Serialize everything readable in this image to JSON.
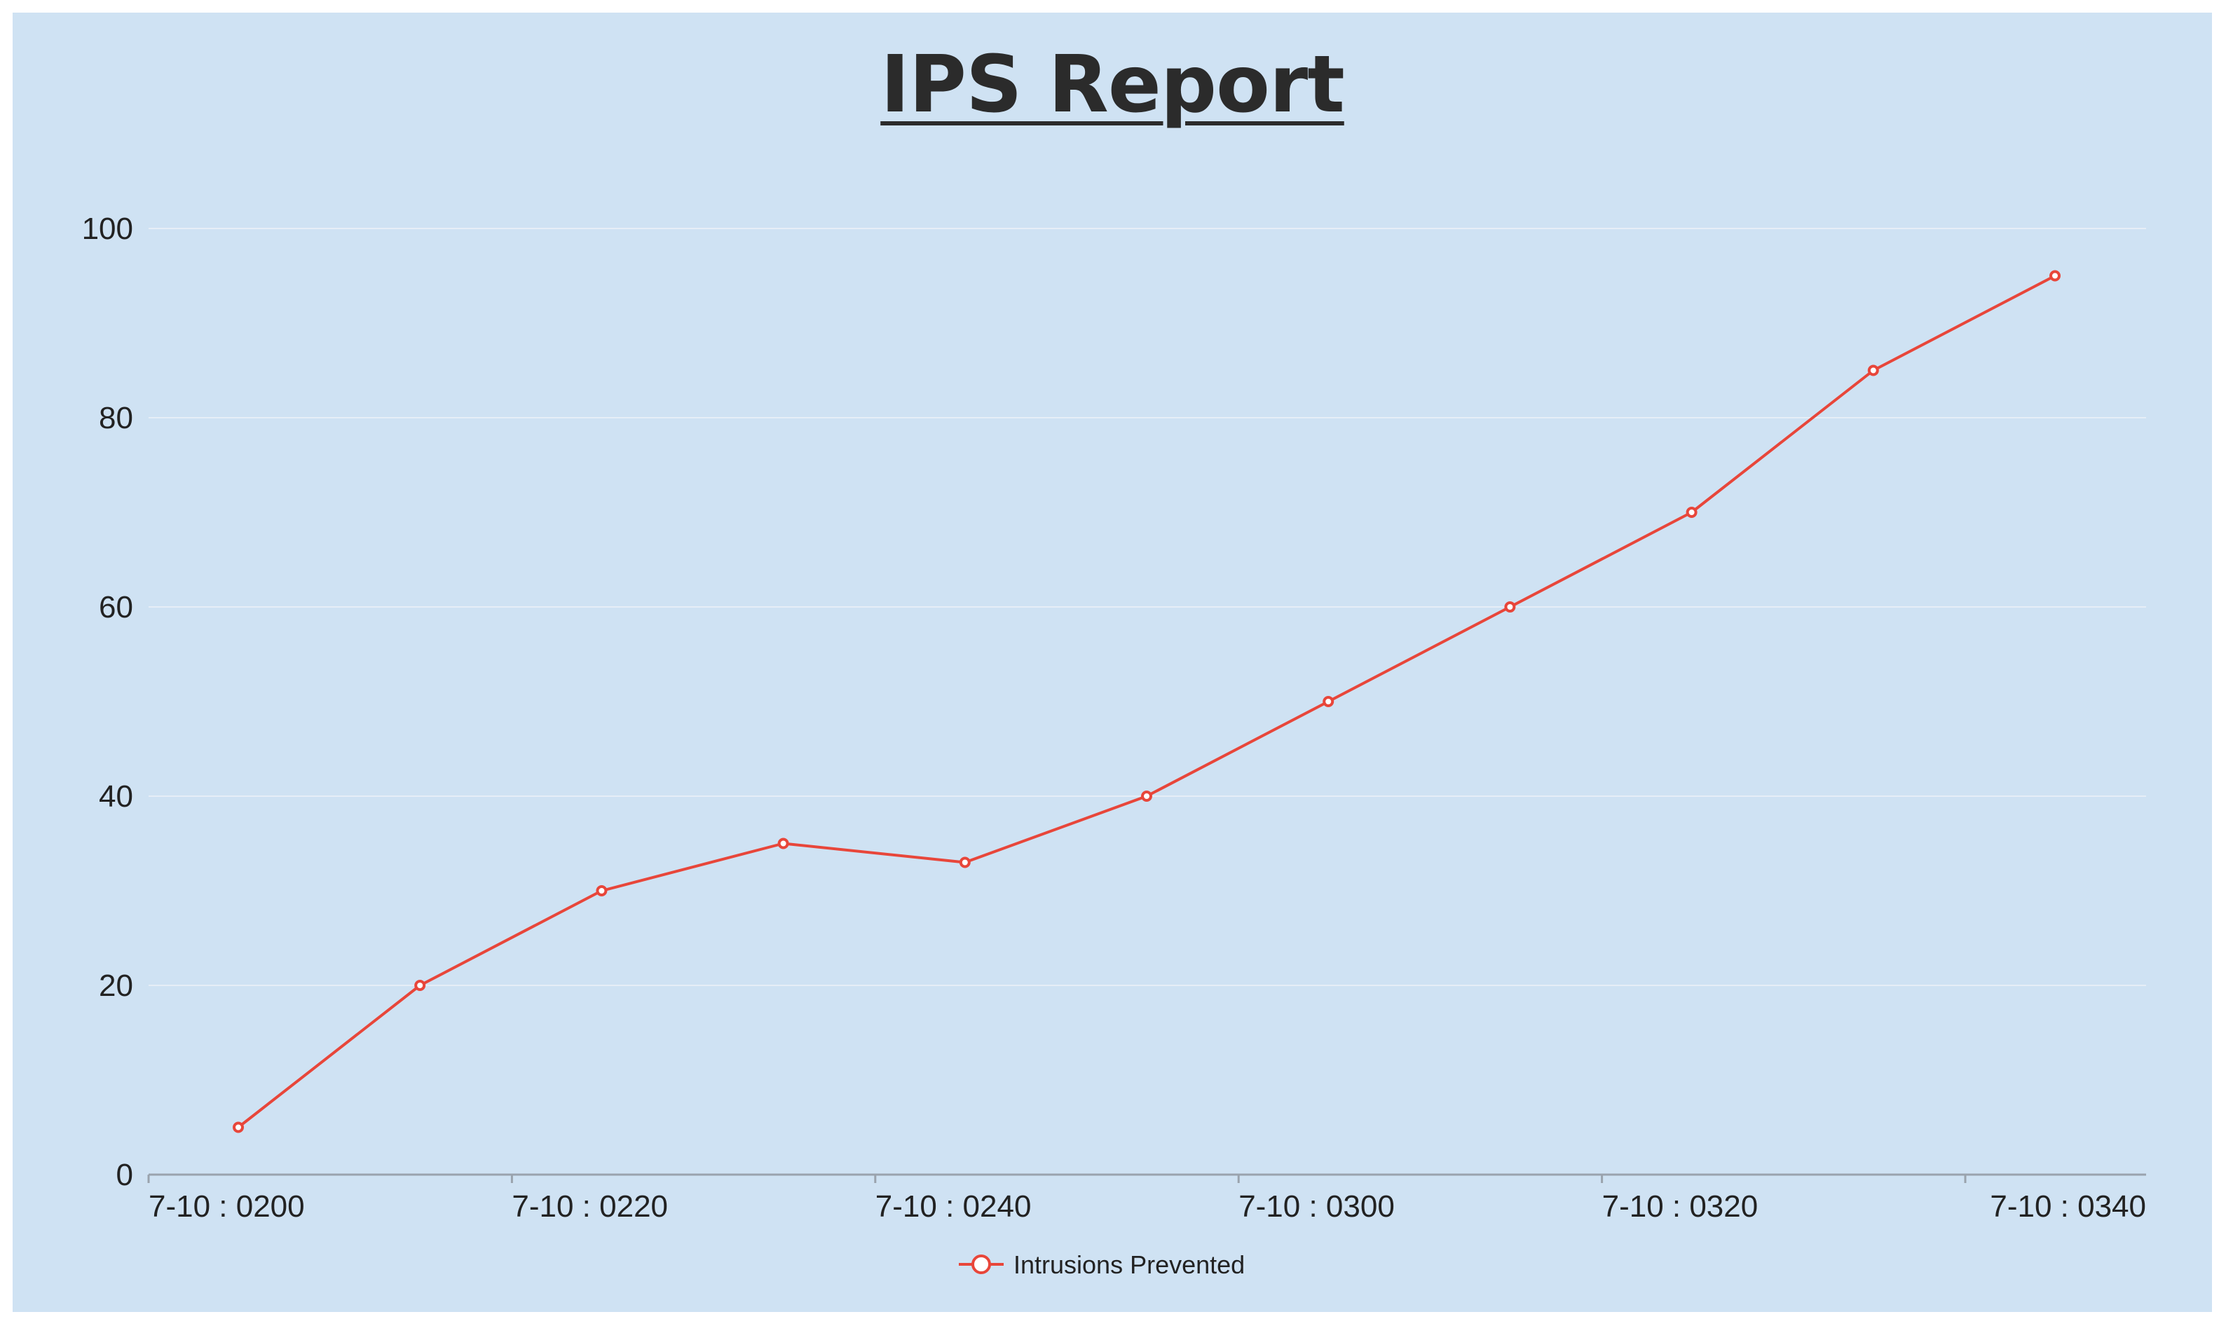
{
  "chart_data": {
    "type": "line",
    "title": "IPS Report",
    "x": [
      "7-10 : 0200",
      "7-10 : 0210",
      "7-10 : 0220",
      "7-10 : 0230",
      "7-10 : 0240",
      "7-10 : 0250",
      "7-10 : 0300",
      "7-10 : 0310",
      "7-10 : 0320",
      "7-10 : 0330",
      "7-10 : 0340"
    ],
    "x_tick_labels": [
      "7-10 : 0200",
      "7-10 : 0220",
      "7-10 : 0240",
      "7-10 : 0300",
      "7-10 : 0320",
      "7-10 : 0340"
    ],
    "series": [
      {
        "name": "Intrusions Prevented",
        "color": "#e8463a",
        "values": [
          5,
          20,
          30,
          35,
          33,
          40,
          50,
          60,
          70,
          85,
          95
        ]
      }
    ],
    "ylim": [
      0,
      100
    ],
    "y_ticks": [
      0,
      20,
      40,
      60,
      80,
      100
    ],
    "grid": true,
    "legend_position": "bottom-center",
    "background": "#cfe2f3"
  }
}
